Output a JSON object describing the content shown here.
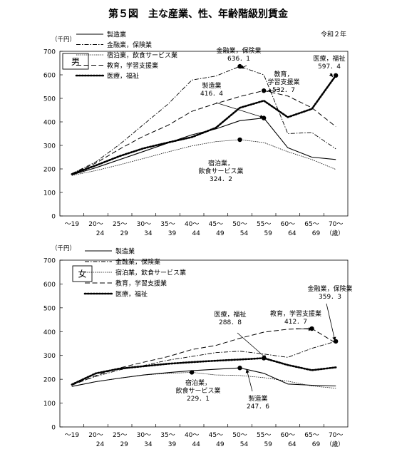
{
  "figure": {
    "title": "第５図　主な産業、性、年齢階級別賃金",
    "era_label": "令和２年"
  },
  "colors": {
    "line": "#000000",
    "background": "#ffffff"
  },
  "chart_data": [
    {
      "type": "line",
      "panel": "male",
      "sex_label": "男",
      "unit_label": "（千円）",
      "age_unit": "（歳）",
      "ylim": [
        0,
        700
      ],
      "yticks": [
        "0",
        "100",
        "200",
        "300",
        "400",
        "500",
        "600",
        "700"
      ],
      "categories": [
        {
          "top": "～19",
          "bottom": ""
        },
        {
          "top": "20～",
          "bottom": "24"
        },
        {
          "top": "25～",
          "bottom": "29"
        },
        {
          "top": "30～",
          "bottom": "34"
        },
        {
          "top": "35～",
          "bottom": "39"
        },
        {
          "top": "40～",
          "bottom": "44"
        },
        {
          "top": "45～",
          "bottom": "49"
        },
        {
          "top": "50～",
          "bottom": "54"
        },
        {
          "top": "55～",
          "bottom": "59"
        },
        {
          "top": "60～",
          "bottom": "64"
        },
        {
          "top": "65～",
          "bottom": "69"
        },
        {
          "top": "70～",
          "bottom": ""
        }
      ],
      "legend_position": "top-left",
      "series": [
        {
          "name": "製造業",
          "style": "solid",
          "values": [
            175,
            205,
            240,
            275,
            310,
            345,
            370,
            405,
            416.4,
            290,
            250,
            240
          ]
        },
        {
          "name": "金融業，保険業",
          "style": "dashdot",
          "values": [
            180,
            230,
            305,
            390,
            475,
            578,
            595,
            636.1,
            600,
            350,
            355,
            285
          ]
        },
        {
          "name": "宿泊業，飲食サービス業",
          "style": "thindot",
          "values": [
            172,
            193,
            218,
            245,
            272,
            298,
            316,
            324.2,
            312,
            273,
            240,
            198
          ]
        },
        {
          "name": "教育，学習支援業",
          "style": "dashed",
          "values": [
            180,
            225,
            285,
            340,
            385,
            445,
            478,
            508,
            532.7,
            510,
            460,
            380
          ]
        },
        {
          "name": "医療，福祉",
          "style": "dotted",
          "values": [
            178,
            215,
            255,
            288,
            312,
            335,
            375,
            460,
            490,
            420,
            455,
            597.4
          ]
        }
      ],
      "markers": [
        {
          "series": "金融業，保険業",
          "index": 7,
          "value": 636.1
        },
        {
          "series": "教育，学習支援業",
          "index": 8,
          "value": 532.7
        },
        {
          "series": "製造業",
          "index": 8,
          "value": 416.4
        },
        {
          "series": "宿泊業，飲食サービス業",
          "index": 7,
          "value": 324.2
        },
        {
          "series": "医療，福祉",
          "index": 11,
          "value": 597.4
        }
      ],
      "annotations": [
        {
          "series": "金融業，保険業",
          "lines": [
            "金融業，保険業",
            "636．1"
          ]
        },
        {
          "series": "教育，学習支援業",
          "lines": [
            "教育，",
            "学習支援業",
            "532．7"
          ]
        },
        {
          "series": "製造業",
          "lines": [
            "製造業",
            "416．4"
          ]
        },
        {
          "series": "宿泊業，飲食サービス業",
          "lines": [
            "宿泊業，",
            "飲食サービス業",
            "324．2"
          ]
        },
        {
          "series": "医療，福祉",
          "lines": [
            "医療，福祉",
            "597．4"
          ]
        }
      ]
    },
    {
      "type": "line",
      "panel": "female",
      "sex_label": "女",
      "unit_label": "（千円）",
      "age_unit": "（歳）",
      "ylim": [
        0,
        700
      ],
      "yticks": [
        "0",
        "100",
        "200",
        "300",
        "400",
        "500",
        "600",
        "700"
      ],
      "categories": [
        {
          "top": "～19",
          "bottom": ""
        },
        {
          "top": "20～",
          "bottom": "24"
        },
        {
          "top": "25～",
          "bottom": "29"
        },
        {
          "top": "30～",
          "bottom": "34"
        },
        {
          "top": "35～",
          "bottom": "39"
        },
        {
          "top": "40～",
          "bottom": "44"
        },
        {
          "top": "45～",
          "bottom": "49"
        },
        {
          "top": "50～",
          "bottom": "54"
        },
        {
          "top": "55～",
          "bottom": "59"
        },
        {
          "top": "60～",
          "bottom": "64"
        },
        {
          "top": "65～",
          "bottom": "69"
        },
        {
          "top": "70～",
          "bottom": ""
        }
      ],
      "legend_position": "top-left",
      "series": [
        {
          "name": "製造業",
          "style": "solid",
          "values": [
            170,
            190,
            205,
            218,
            228,
            236,
            242,
            247.6,
            225,
            180,
            175,
            172
          ]
        },
        {
          "name": "金融業，保険業",
          "style": "dashdot",
          "values": [
            178,
            212,
            240,
            258,
            280,
            296,
            312,
            318,
            306,
            292,
            330,
            359.3
          ]
        },
        {
          "name": "宿泊業，飲食サービス業",
          "style": "thindot",
          "values": [
            170,
            190,
            205,
            218,
            225,
            229.1,
            218,
            216,
            207,
            192,
            172,
            162
          ]
        },
        {
          "name": "教育，学習支援業",
          "style": "dashed",
          "values": [
            175,
            215,
            248,
            272,
            295,
            325,
            342,
            372,
            398,
            410,
            412.7,
            352
          ]
        },
        {
          "name": "医療，福祉",
          "style": "dotted",
          "values": [
            178,
            225,
            245,
            255,
            265,
            272,
            278,
            283,
            288.8,
            260,
            238,
            250
          ]
        }
      ],
      "markers": [
        {
          "series": "金融業，保険業",
          "index": 11,
          "value": 359.3
        },
        {
          "series": "教育，学習支援業",
          "index": 10,
          "value": 412.7
        },
        {
          "series": "医療，福祉",
          "index": 8,
          "value": 288.8
        },
        {
          "series": "宿泊業，飲食サービス業",
          "index": 5,
          "value": 229.1
        },
        {
          "series": "製造業",
          "index": 7,
          "value": 247.6
        }
      ],
      "annotations": [
        {
          "series": "金融業，保険業",
          "lines": [
            "金融業，保険業",
            "359．3"
          ]
        },
        {
          "series": "教育，学習支援業",
          "lines": [
            "教育，学習支援業",
            "412．7"
          ]
        },
        {
          "series": "医療，福祉",
          "lines": [
            "医療，福祉",
            "288．8"
          ]
        },
        {
          "series": "宿泊業，飲食サービス業",
          "lines": [
            "宿泊業，",
            "飲食サービス業",
            "229．1"
          ]
        },
        {
          "series": "製造業",
          "lines": [
            "製造業",
            "247．6"
          ]
        }
      ]
    }
  ]
}
